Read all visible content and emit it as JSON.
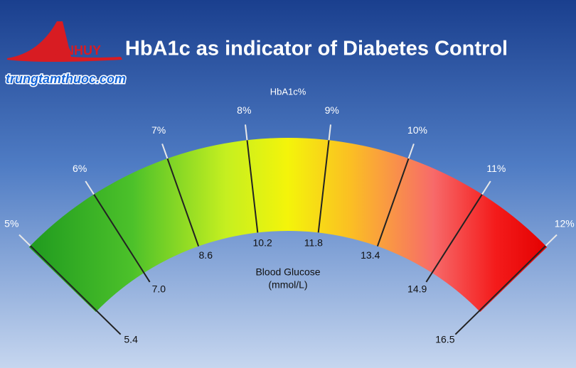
{
  "header": {
    "title": "HbA1c as indicator of Diabetes Control",
    "logo": "ANHUY",
    "website": "trungtamthuoc.com"
  },
  "gauge": {
    "label": "HbA1c%",
    "inner_label": "Blood Glucose",
    "inner_unit": "(mmol/L)",
    "ticks": [
      {
        "hba1c": "5%",
        "glucose": "5.4"
      },
      {
        "hba1c": "6%",
        "glucose": "7.0"
      },
      {
        "hba1c": "7%",
        "glucose": "8.6"
      },
      {
        "hba1c": "8%",
        "glucose": "10.2"
      },
      {
        "hba1c": "9%",
        "glucose": "11.8"
      },
      {
        "hba1c": "10%",
        "glucose": "13.4"
      },
      {
        "hba1c": "11%",
        "glucose": "14.9"
      },
      {
        "hba1c": "12%",
        "glucose": "16.5"
      }
    ]
  }
}
